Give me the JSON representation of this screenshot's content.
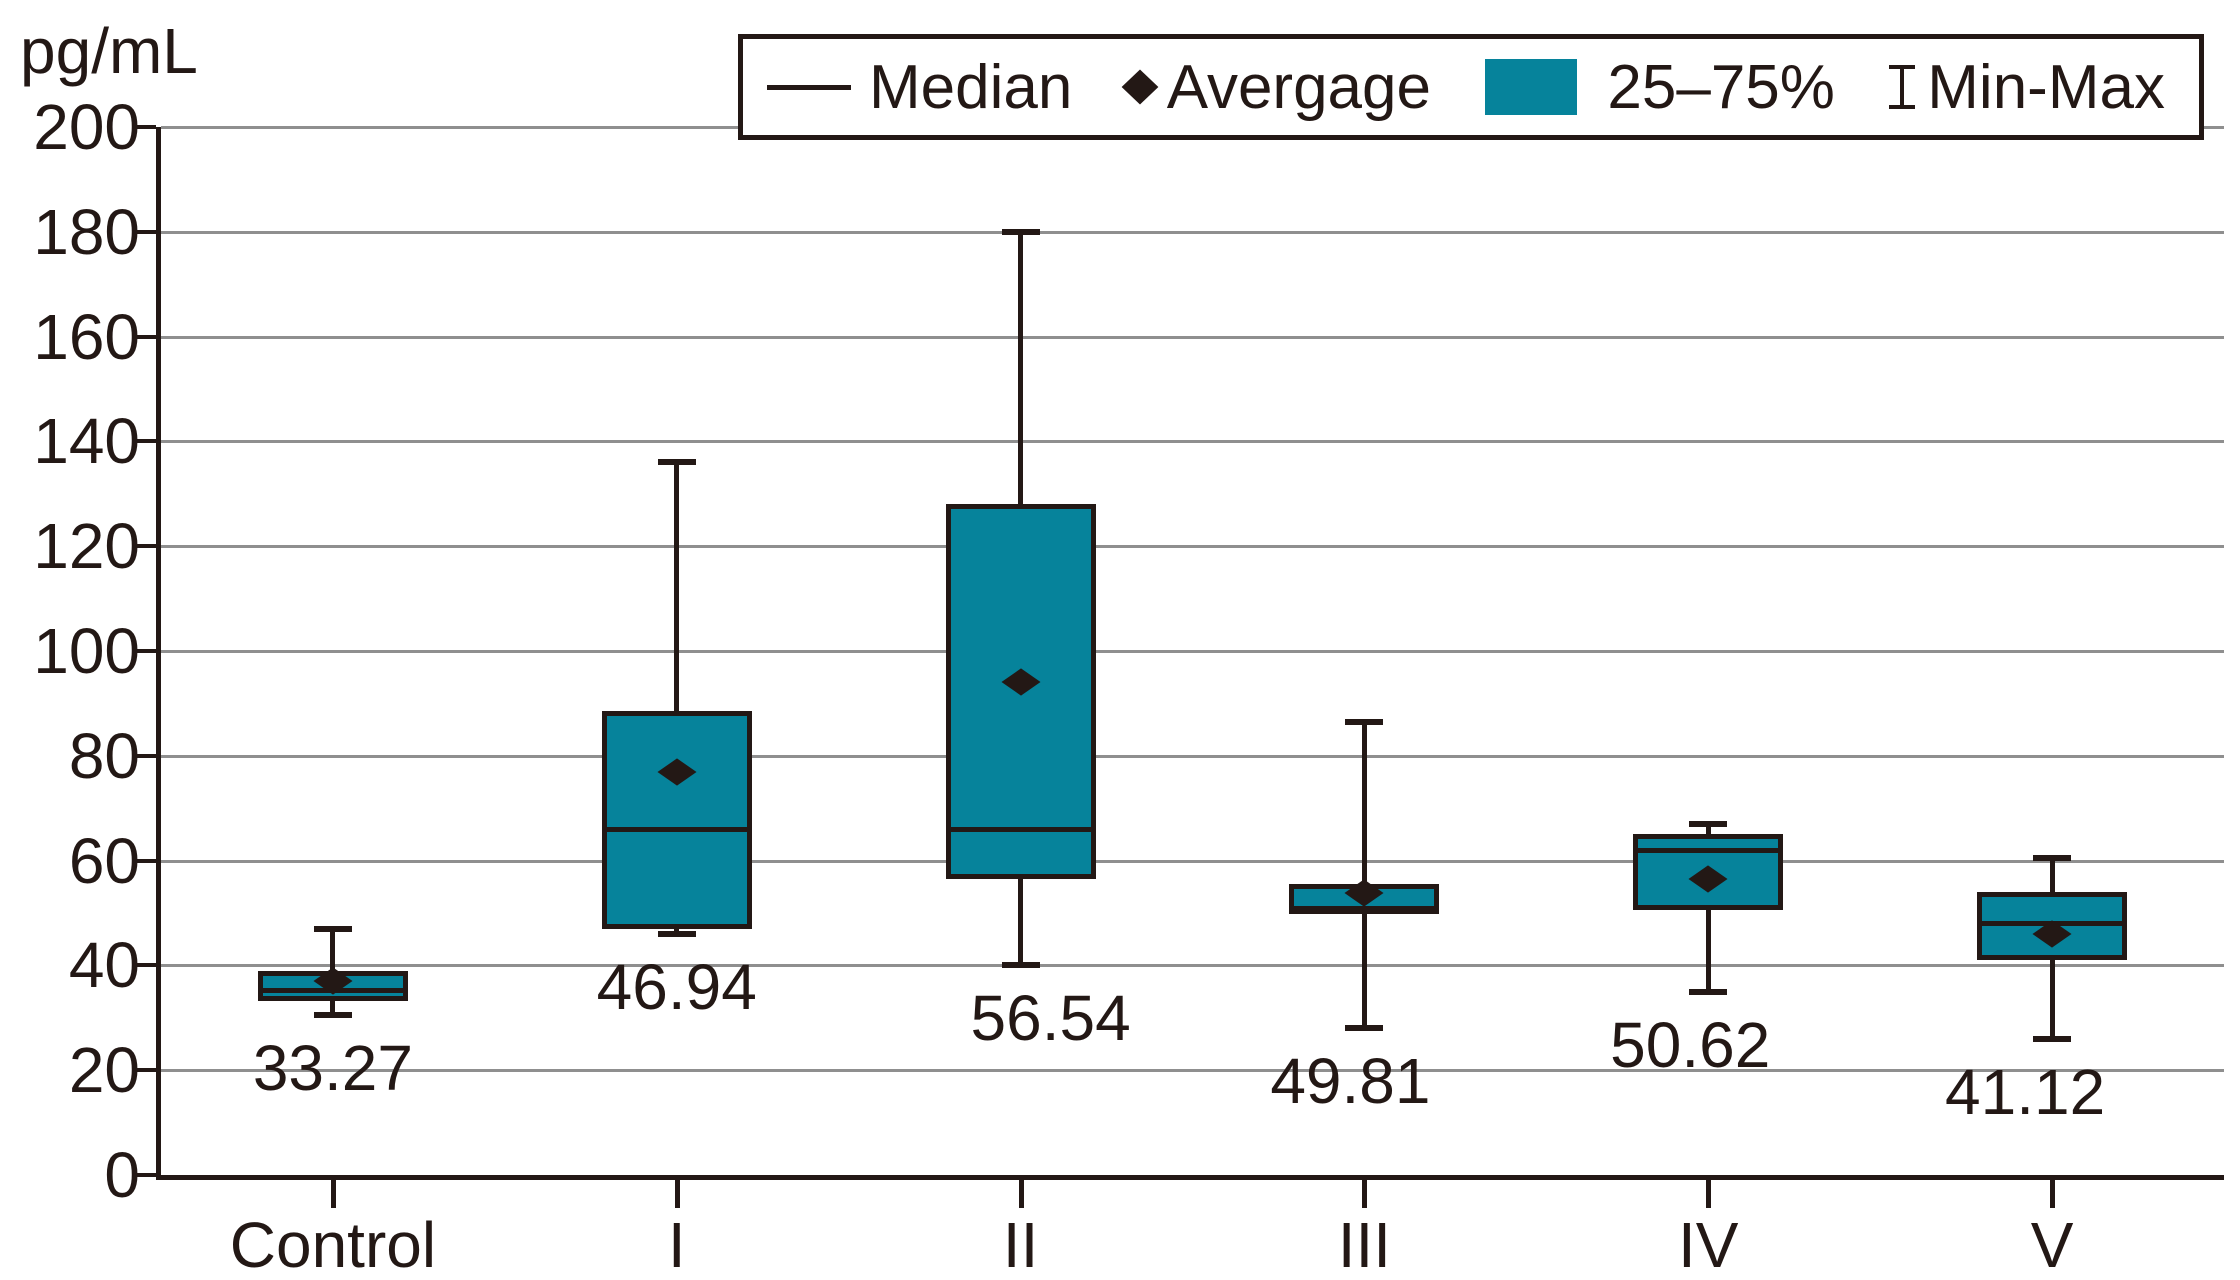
{
  "colors": {
    "box_fill": "#06839b",
    "line": "#231815",
    "grid": "#8f8f8f",
    "background": "#ffffff"
  },
  "chart_data": {
    "type": "box",
    "ylabel": "pg/mL",
    "ylim": [
      0,
      200
    ],
    "ytick_step": 20,
    "yticks": [
      "0",
      "20",
      "40",
      "60",
      "80",
      "100",
      "120",
      "140",
      "160",
      "180",
      "200"
    ],
    "grid": "horizontal",
    "legend_position": "top",
    "categories": [
      "Control",
      "I",
      "II",
      "III",
      "IV",
      "V"
    ],
    "series": [
      {
        "category": "Control",
        "min": 30.5,
        "q1": 33.27,
        "median": 35.3,
        "q3": 39,
        "max": 47,
        "avg": 37,
        "value_label": "33.27"
      },
      {
        "category": "I",
        "min": 46,
        "q1": 46.94,
        "median": 66,
        "q3": 88.5,
        "max": 136,
        "avg": 77,
        "value_label": "46.94"
      },
      {
        "category": "II",
        "min": 40,
        "q1": 56.54,
        "median": 66,
        "q3": 128,
        "max": 180,
        "avg": 94,
        "value_label": "56.54"
      },
      {
        "category": "III",
        "min": 28,
        "q1": 49.81,
        "median": 50.8,
        "q3": 55.5,
        "max": 86.5,
        "avg": 53.8,
        "value_label": "49.81"
      },
      {
        "category": "IV",
        "min": 35,
        "q1": 50.62,
        "median": 62,
        "q3": 65,
        "max": 67,
        "avg": 56.5,
        "value_label": "50.62"
      },
      {
        "category": "V",
        "min": 26,
        "q1": 41.12,
        "median": 48,
        "q3": 54,
        "max": 60.5,
        "avg": 46,
        "value_label": "41.12"
      }
    ],
    "legend": [
      {
        "marker": "line",
        "marker_name": "median-line-icon",
        "label": "Median"
      },
      {
        "marker": "diamond",
        "marker_name": "average-diamond-icon",
        "label": "Avergage"
      },
      {
        "marker": "box",
        "marker_name": "iqr-box-icon",
        "label": "25–75%"
      },
      {
        "marker": "minmax",
        "marker_name": "min-max-whisker-icon",
        "label": "Min-Max"
      }
    ]
  }
}
